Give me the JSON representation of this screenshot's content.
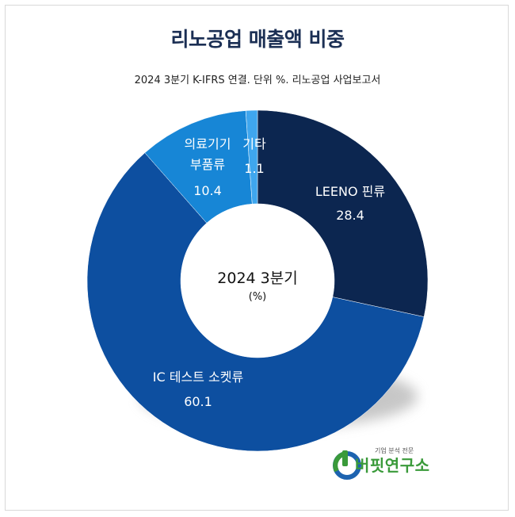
{
  "title": "리노공업 매출액 비중",
  "subtitle": "2024 3분기 K-IFRS 연결. 단위 %. 리노공업 사업보고서",
  "colors": {
    "title": "#1b2f54",
    "slice_dark": "#0c2650",
    "slice_mid": "#0d4fa0",
    "slice_light": "#1786d6",
    "slice_lightest": "#3fa6ee",
    "logo_green": "#3a9a3a",
    "logo_blue": "#1d63b0"
  },
  "chart_data": {
    "type": "pie",
    "style": "donut",
    "center_label": "2024 3분기",
    "center_sublabel": "(%)",
    "slices": [
      {
        "label": "LEENO 핀류",
        "value": 28.4,
        "value_text": "28.4",
        "color": "#0c2650"
      },
      {
        "label": "IC 테스트 소켓류",
        "value": 60.1,
        "value_text": "60.1",
        "color": "#0d4fa0"
      },
      {
        "label_lines": [
          "의료기기",
          "부품류"
        ],
        "value": 10.4,
        "value_text": "10.4",
        "color": "#1786d6"
      },
      {
        "label": "기타",
        "value": 1.1,
        "value_text": "1.1",
        "color": "#3fa6ee"
      }
    ]
  },
  "logo": {
    "tagline": "기업 분석 전문",
    "name": "버핏연구소",
    "icon": "buffett-lab-logo-icon"
  }
}
